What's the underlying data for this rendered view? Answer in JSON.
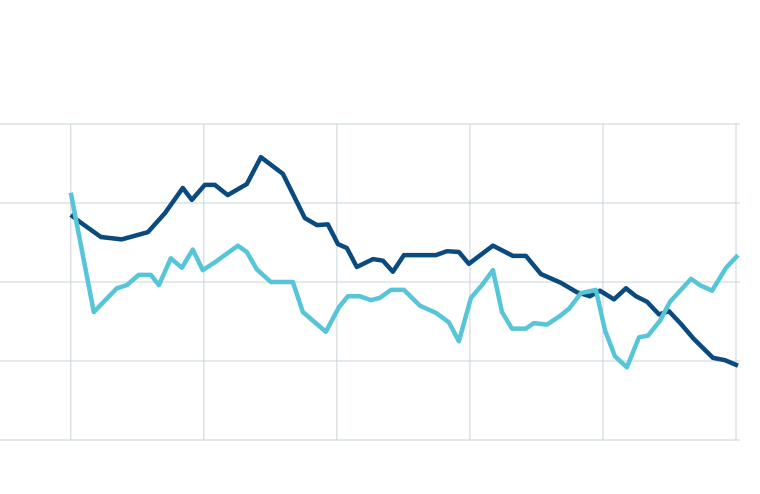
{
  "chart_data": {
    "type": "line",
    "xlim": [
      -0.532,
      5.015
    ],
    "xticks": [
      0,
      1,
      2,
      3,
      4,
      5
    ],
    "ylim": [
      0,
      4
    ],
    "yticks": [
      0,
      1,
      2,
      3,
      4
    ],
    "grid": true,
    "grid_color": "#c8d3da",
    "series": [
      {
        "color": "#0b4a7e",
        "x": [
          0,
          0.068,
          0.226,
          0.383,
          0.579,
          0.707,
          0.842,
          0.91,
          1.008,
          1.083,
          1.18,
          1.323,
          1.429,
          1.594,
          1.759,
          1.85,
          1.932,
          2.008,
          2.075,
          2.15,
          2.271,
          2.346,
          2.421,
          2.504,
          2.744,
          2.827,
          2.917,
          2.992,
          3.173,
          3.323,
          3.421,
          3.534,
          3.684,
          3.805,
          3.902,
          3.977,
          4.083,
          4.173,
          4.248,
          4.331,
          4.421,
          4.496,
          4.586,
          4.677,
          4.827,
          4.917,
          5.015
        ],
        "values": [
          2.85,
          2.76,
          2.57,
          2.54,
          2.63,
          2.87,
          3.19,
          3.04,
          3.23,
          3.23,
          3.1,
          3.24,
          3.58,
          3.37,
          2.81,
          2.72,
          2.73,
          2.48,
          2.43,
          2.19,
          2.29,
          2.27,
          2.13,
          2.34,
          2.34,
          2.39,
          2.38,
          2.23,
          2.46,
          2.33,
          2.33,
          2.1,
          1.99,
          1.87,
          1.82,
          1.89,
          1.78,
          1.92,
          1.82,
          1.75,
          1.59,
          1.63,
          1.47,
          1.29,
          1.04,
          1.01,
          0.94
        ]
      },
      {
        "color": "#56c5d8",
        "x": [
          0,
          0.173,
          0.346,
          0.421,
          0.511,
          0.602,
          0.662,
          0.752,
          0.835,
          0.917,
          0.992,
          1.075,
          1.256,
          1.323,
          1.398,
          1.504,
          1.669,
          1.744,
          1.917,
          2.015,
          2.083,
          2.173,
          2.256,
          2.323,
          2.406,
          2.504,
          2.624,
          2.744,
          2.842,
          2.917,
          3.008,
          3.09,
          3.173,
          3.241,
          3.316,
          3.421,
          3.481,
          3.579,
          3.669,
          3.744,
          3.835,
          3.947,
          4.015,
          4.09,
          4.18,
          4.271,
          4.338,
          4.429,
          4.504,
          4.662,
          4.729,
          4.82,
          4.925,
          5.015
        ],
        "values": [
          3.13,
          1.62,
          1.92,
          1.96,
          2.09,
          2.09,
          1.96,
          2.3,
          2.18,
          2.41,
          2.15,
          2.24,
          2.46,
          2.38,
          2.16,
          2.0,
          2.0,
          1.62,
          1.37,
          1.68,
          1.82,
          1.82,
          1.77,
          1.8,
          1.9,
          1.9,
          1.7,
          1.61,
          1.49,
          1.25,
          1.8,
          1.96,
          2.15,
          1.62,
          1.41,
          1.41,
          1.48,
          1.46,
          1.56,
          1.66,
          1.86,
          1.9,
          1.39,
          1.06,
          0.92,
          1.3,
          1.32,
          1.51,
          1.75,
          2.04,
          1.96,
          1.89,
          2.18,
          2.34
        ]
      }
    ]
  }
}
